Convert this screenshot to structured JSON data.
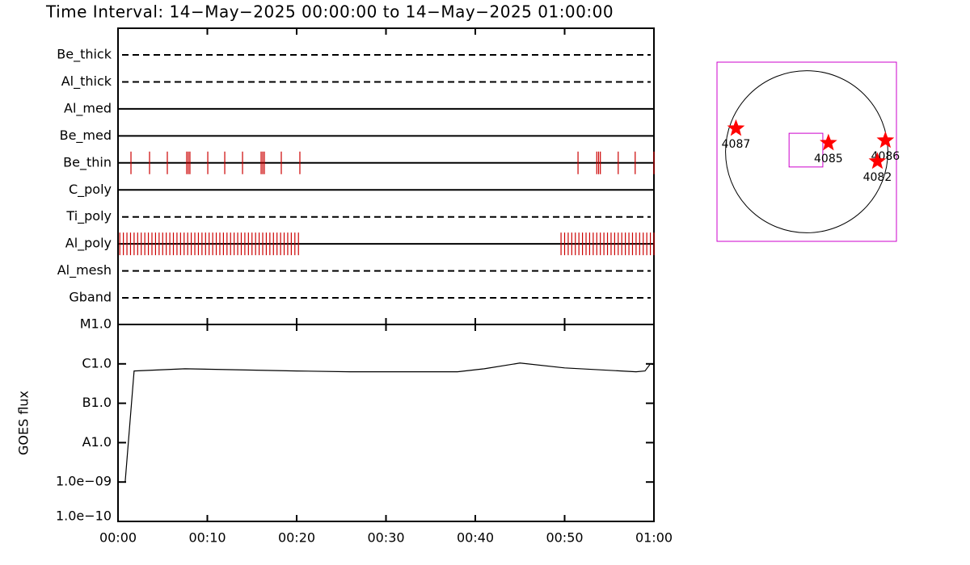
{
  "title": "Time Interval: 14−May−2025 00:00:00 to 14−May−2025 01:00:00",
  "chart_data": [
    {
      "type": "timeline",
      "xlim": [
        0,
        60
      ],
      "color": "#cc0000",
      "rows": [
        {
          "name": "Be_thick",
          "style": "dashed",
          "events": []
        },
        {
          "name": "Al_thick",
          "style": "dashed",
          "events": []
        },
        {
          "name": "Al_med",
          "style": "solid",
          "events": []
        },
        {
          "name": "Be_med",
          "style": "solid",
          "events": []
        },
        {
          "name": "Be_thin",
          "style": "solid",
          "events": [
            1.45,
            3.53,
            5.52,
            7.69,
            7.87,
            8.05,
            10.05,
            11.95,
            13.94,
            16.02,
            16.2,
            16.38,
            18.28,
            20.36,
            51.5,
            53.6,
            53.8,
            54.0,
            56.0,
            57.9,
            60.0
          ]
        },
        {
          "name": "C_poly",
          "style": "solid",
          "events": []
        },
        {
          "name": "Ti_poly",
          "style": "dashed",
          "events": []
        },
        {
          "name": "Al_poly",
          "style": "solid",
          "events": [
            0.2,
            0.6,
            1.0,
            1.4,
            1.8,
            2.2,
            2.6,
            3.0,
            3.4,
            3.8,
            4.2,
            4.6,
            5.0,
            5.4,
            5.8,
            6.2,
            6.6,
            7.0,
            7.4,
            7.8,
            8.2,
            8.6,
            9.0,
            9.4,
            9.8,
            10.2,
            10.6,
            11.0,
            11.4,
            11.8,
            12.2,
            12.6,
            13.0,
            13.4,
            13.8,
            14.2,
            14.6,
            15.0,
            15.4,
            15.8,
            16.2,
            16.6,
            17.0,
            17.4,
            17.8,
            18.2,
            18.6,
            19.0,
            19.4,
            19.8,
            20.2,
            49.6,
            50.0,
            50.4,
            50.8,
            51.2,
            51.6,
            52.0,
            52.4,
            52.8,
            53.2,
            53.6,
            54.0,
            54.4,
            54.8,
            55.2,
            55.6,
            56.0,
            56.4,
            56.8,
            57.2,
            57.6,
            58.0,
            58.4,
            58.8,
            59.2,
            59.6,
            60.0
          ]
        },
        {
          "name": "Al_mesh",
          "style": "dashed",
          "events": []
        },
        {
          "name": "Gband",
          "style": "dashed",
          "events": []
        }
      ]
    },
    {
      "type": "line",
      "ylabel": "GOES flux",
      "log_y": true,
      "color": "#000000",
      "x": [
        0.8,
        1.8,
        7.5,
        20,
        26,
        38,
        41,
        45,
        50,
        58,
        59,
        59.6,
        60
      ],
      "values": [
        1e-09,
        6.6e-07,
        7.5e-07,
        6.6e-07,
        6.3e-07,
        6.3e-07,
        7.5e-07,
        1.05e-06,
        7.9e-07,
        6.3e-07,
        6.6e-07,
        1e-06,
        9.5e-07
      ],
      "ylim": [
        1e-10,
        1e-05
      ],
      "yticks": [
        {
          "value": 1e-10,
          "label": "1.0e−10"
        },
        {
          "value": 1e-09,
          "label": "1.0e−09"
        },
        {
          "value": 1e-08,
          "label": "A1.0"
        },
        {
          "value": 1e-07,
          "label": "B1.0"
        },
        {
          "value": 1e-06,
          "label": "C1.0"
        },
        {
          "value": 1e-05,
          "label": "M1.0"
        }
      ],
      "xlim": [
        0,
        60
      ],
      "xticks": [
        {
          "value": 0,
          "label": "00:00"
        },
        {
          "value": 10,
          "label": "00:10"
        },
        {
          "value": 20,
          "label": "00:20"
        },
        {
          "value": 30,
          "label": "00:30"
        },
        {
          "value": 40,
          "label": "00:40"
        },
        {
          "value": 50,
          "label": "00:50"
        },
        {
          "value": 60,
          "label": "01:00"
        }
      ]
    },
    {
      "type": "map",
      "xlim": [
        -1050,
        1050
      ],
      "ylim": [
        -1050,
        1050
      ],
      "disk_radius": 950,
      "box_color": "#cc00cc",
      "marker_color": "#ff0000",
      "fov": {
        "x": -9,
        "y": 19,
        "size": 395
      },
      "points": [
        {
          "label": "4087",
          "x": -828,
          "y": 273
        },
        {
          "label": "4085",
          "x": 254,
          "y": 103
        },
        {
          "label": "4086",
          "x": 921,
          "y": 132
        },
        {
          "label": "4082",
          "x": 827,
          "y": -113
        }
      ]
    }
  ]
}
